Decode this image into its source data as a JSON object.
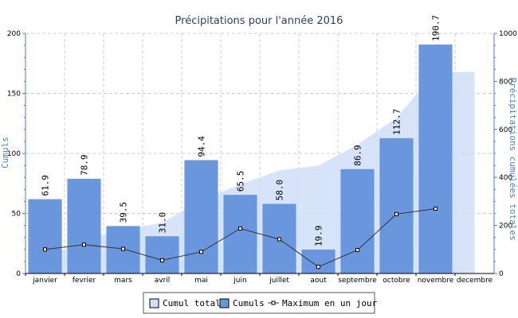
{
  "chart_data": {
    "type": "bar",
    "title": "Précipitations pour l'année 2016",
    "categories": [
      "janvier",
      "fevrier",
      "mars",
      "avril",
      "mai",
      "juin",
      "juillet",
      "aout",
      "septembre",
      "octobre",
      "novembre",
      "decembre"
    ],
    "ylabel_left": "Cumuls",
    "ylabel_right": "Précipitations cumulées totales",
    "ylim_left": [
      0,
      200
    ],
    "ylim_right": [
      0,
      1000
    ],
    "yticks_left": [
      "0",
      "50",
      "100",
      "150",
      "200"
    ],
    "yticks_right": [
      "0",
      "200",
      "400",
      "600",
      "800",
      "1000"
    ],
    "grid": true,
    "legend_position": "bottom-center",
    "series": [
      {
        "name": "Cumuls",
        "type": "bar",
        "axis": "left",
        "color": "#6a96de",
        "values": [
          61.9,
          78.9,
          39.5,
          31.0,
          94.4,
          65.5,
          58.0,
          19.9,
          86.9,
          112.7,
          190.7,
          null
        ],
        "labels": [
          "61.9",
          "78.9",
          "39.5",
          "31.0",
          "94.4",
          "65.5",
          "58.0",
          "19.9",
          "86.9",
          "112.7",
          "190.7",
          ""
        ]
      },
      {
        "name": "Cumul total",
        "type": "area",
        "axis": "right",
        "color": "#d2e0f8",
        "values": [
          61.9,
          140.8,
          180.3,
          211.3,
          305.7,
          371.2,
          429.2,
          449.1,
          536.0,
          648.7,
          839.4,
          839.4
        ]
      },
      {
        "name": "Maximum en un jour",
        "type": "line",
        "axis": "left",
        "color": "#333333",
        "values": [
          20,
          24,
          20.5,
          11,
          18,
          37.5,
          28.5,
          5.5,
          19.5,
          49.5,
          54,
          null
        ]
      }
    ]
  }
}
